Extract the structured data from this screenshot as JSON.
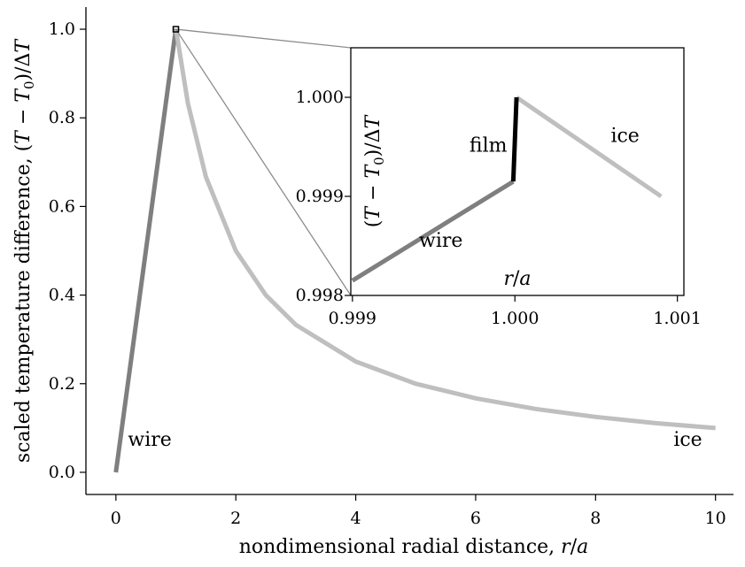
{
  "chart_data": [
    {
      "type": "line",
      "panel": "main",
      "xlabel": "nondimensional radial distance, r/a",
      "ylabel": "scaled temperature difference, (T − T₀)/ΔT",
      "xlim": [
        -0.5,
        10.3
      ],
      "ylim": [
        -0.05,
        1.05
      ],
      "xticks": [
        0,
        2,
        4,
        6,
        8,
        10
      ],
      "yticks": [
        0.0,
        0.2,
        0.4,
        0.6,
        0.8,
        1.0
      ],
      "xtick_labels": [
        "0",
        "2",
        "4",
        "6",
        "8",
        "10"
      ],
      "ytick_labels": [
        "0.0",
        "0.2",
        "0.4",
        "0.6",
        "0.8",
        "1.0"
      ],
      "grid": false,
      "series": [
        {
          "name": "wire",
          "color": "#7f7f7f",
          "x": [
            0,
            1
          ],
          "y": [
            0,
            1
          ]
        },
        {
          "name": "film",
          "color": "#000000",
          "x": [
            1,
            1.001
          ],
          "y": [
            0.999,
            1
          ]
        },
        {
          "name": "ice",
          "color": "#bfbfbf",
          "x": [
            1.001,
            1.2,
            1.5,
            2,
            2.5,
            3,
            4,
            5,
            6,
            7,
            8,
            9,
            10
          ],
          "y": [
            1,
            0.833,
            0.667,
            0.5,
            0.4,
            0.333,
            0.25,
            0.2,
            0.167,
            0.143,
            0.125,
            0.111,
            0.1
          ]
        }
      ],
      "annotations": [
        {
          "text": "wire",
          "x": 0.2,
          "y": 0.06
        },
        {
          "text": "ice",
          "x": 9.3,
          "y": 0.06
        }
      ]
    },
    {
      "type": "line",
      "panel": "inset",
      "xlabel": "r/a",
      "ylabel": "(T − T₀)/ΔT",
      "xlim": [
        0.99899,
        1.00104
      ],
      "ylim": [
        0.998,
        1.0005
      ],
      "xticks": [
        0.999,
        1.0,
        1.001
      ],
      "yticks": [
        0.998,
        0.999,
        1.0
      ],
      "xtick_labels": [
        "0.999",
        "1.000",
        "1.001"
      ],
      "ytick_labels": [
        "0.998",
        "0.999",
        "1.000"
      ],
      "grid": false,
      "series": [
        {
          "name": "wire",
          "color": "#7f7f7f",
          "x": [
            0.999,
            0.99999
          ],
          "y": [
            0.99815,
            0.99915
          ]
        },
        {
          "name": "film",
          "color": "#000000",
          "x": [
            0.99999,
            1.00001
          ],
          "y": [
            0.99915,
            1.0
          ]
        },
        {
          "name": "ice",
          "color": "#bfbfbf",
          "x": [
            1.00001,
            1.0009
          ],
          "y": [
            1.0,
            0.999
          ]
        }
      ],
      "annotations": [
        {
          "text": "film",
          "x": 0.99972,
          "y": 0.99945
        },
        {
          "text": "wire",
          "x": 0.99941,
          "y": 0.99849
        },
        {
          "text": "ice",
          "x": 1.00059,
          "y": 0.99955
        }
      ]
    }
  ],
  "colors": {
    "wire": "#7f7f7f",
    "film": "#000000",
    "ice": "#bfbfbf",
    "connector": "#8c8c8c"
  }
}
